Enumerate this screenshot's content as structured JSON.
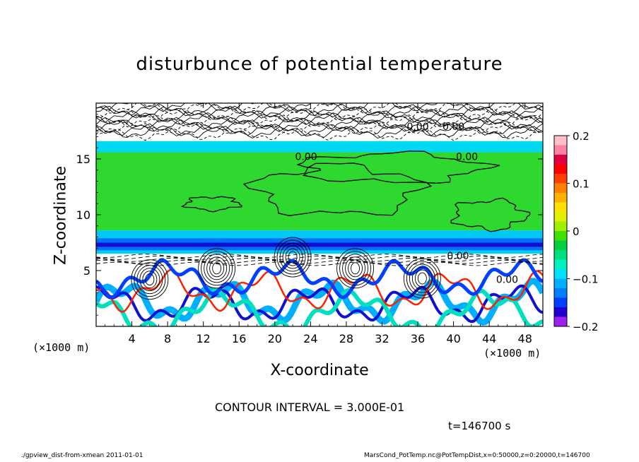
{
  "chart_data": {
    "type": "heatmap",
    "title": "disturbunce of potential temperature",
    "xlabel": "X-coordinate",
    "ylabel": "Z-coordinate",
    "x_unit_label": "(×1000 m)",
    "xlim": [
      0,
      50
    ],
    "ylim": [
      0,
      20
    ],
    "x_ticks": [
      4,
      8,
      12,
      16,
      20,
      24,
      28,
      32,
      36,
      40,
      44,
      48
    ],
    "y_ticks": [
      5,
      10,
      15
    ],
    "colorbar": {
      "range": [
        -0.2,
        0.2
      ],
      "ticks": [
        "0.2",
        "0.1",
        "0",
        "−0.1",
        "−0.2"
      ],
      "tick_values": [
        0.2,
        0.1,
        0,
        -0.1,
        -0.2
      ],
      "colors": [
        "#a020f0",
        "#2000d0",
        "#0040ff",
        "#0080ff",
        "#00b0ff",
        "#00e0ff",
        "#00f0c0",
        "#00e080",
        "#00d040",
        "#40e000",
        "#a0f000",
        "#e0f000",
        "#ffe000",
        "#ffb000",
        "#ff8000",
        "#ff4000",
        "#ff0000",
        "#e00040",
        "#ff80a0",
        "#ffc0c8"
      ]
    },
    "contour_labels": [
      {
        "text": "0.00",
        "x": 23.5,
        "z": 14.9
      },
      {
        "text": "0.00",
        "x": 41.5,
        "z": 14.9
      },
      {
        "text": "0.00",
        "x": 40.5,
        "z": 6.0
      },
      {
        "text": "0.00",
        "x": 46.0,
        "z": 3.9
      },
      {
        "text": "0.00",
        "x": 36.0,
        "z": 17.6
      },
      {
        "text": "0.00",
        "x": 40.0,
        "z": 17.6
      }
    ],
    "contour_interval_text": "CONTOUR INTERVAL = 3.000E-01",
    "time_text": "t=146700 s"
  },
  "footer": {
    "left": "./gpview_dist-from-xmean  2011-01-01",
    "right": "MarsCond_PotTemp.nc@PotTempDist,x=0:50000,z=0:20000,t=146700"
  }
}
